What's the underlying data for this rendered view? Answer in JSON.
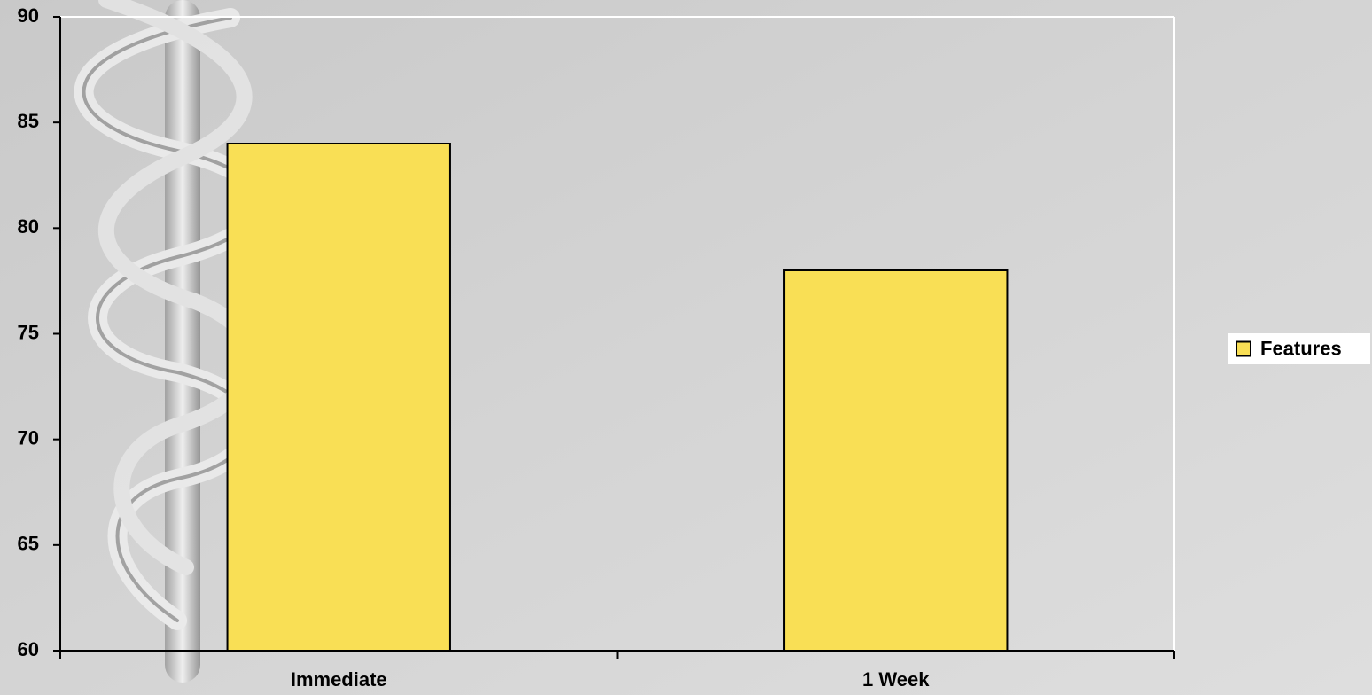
{
  "chart_data": {
    "type": "bar",
    "categories": [
      "Immediate",
      "1 Week"
    ],
    "series": [
      {
        "name": "Features",
        "color": "#f9df55",
        "values": [
          84,
          78
        ]
      }
    ],
    "ylim": [
      60,
      90
    ],
    "yticks": [
      60,
      65,
      70,
      75,
      80,
      85,
      90
    ],
    "legend": "right"
  }
}
